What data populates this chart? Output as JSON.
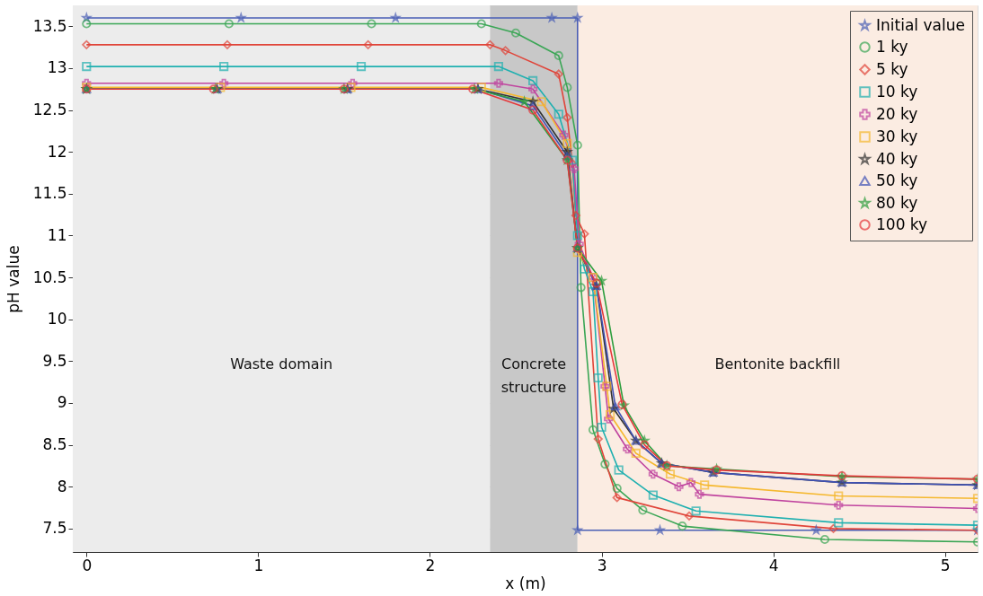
{
  "chart_data": {
    "type": "line",
    "xlabel": "x (m)",
    "ylabel": "pH value",
    "xlim": [
      -0.08,
      5.19
    ],
    "ylim": [
      7.22,
      13.75
    ],
    "xticks": [
      0,
      1,
      2,
      3,
      4,
      5
    ],
    "yticks": [
      7.5,
      8,
      8.5,
      9,
      9.5,
      10,
      10.5,
      11,
      11.5,
      12,
      12.5,
      13,
      13.5
    ],
    "grid": true,
    "legend": "top right",
    "bands": [
      {
        "axis": "x",
        "from": -0.08,
        "to": 2.35,
        "label": "Waste domain",
        "color": "#ececec"
      },
      {
        "axis": "x",
        "from": 2.35,
        "to": 2.86,
        "label": "Concrete\nstructure",
        "color": "#c8c8c8"
      },
      {
        "axis": "x",
        "from": 2.86,
        "to": 5.19,
        "label": "Bentonite backfill",
        "color": "#fbece2"
      }
    ],
    "series": [
      {
        "name": "Initial value",
        "color": "#4a5fb5",
        "marker": "star",
        "x": [
          0,
          0.9,
          1.8,
          2.71,
          2.86,
          2.86,
          3.34,
          4.25,
          5.19
        ],
        "values": [
          13.6,
          13.6,
          13.6,
          13.6,
          13.6,
          7.48,
          7.48,
          7.48,
          7.48
        ]
      },
      {
        "name": "1 ky",
        "color": "#3aa655",
        "marker": "circle",
        "x": [
          0,
          0.83,
          1.66,
          2.3,
          2.5,
          2.75,
          2.8,
          2.86,
          2.88,
          2.95,
          3.02,
          3.09,
          3.24,
          3.47,
          4.3,
          5.19
        ],
        "values": [
          13.53,
          13.53,
          13.53,
          13.53,
          13.42,
          13.15,
          12.77,
          12.08,
          10.38,
          8.68,
          8.27,
          7.98,
          7.72,
          7.53,
          7.37,
          7.34
        ]
      },
      {
        "name": "5 ky",
        "color": "#e0453a",
        "marker": "diamond",
        "x": [
          0,
          0.82,
          1.64,
          2.35,
          2.44,
          2.75,
          2.8,
          2.83,
          2.85,
          2.9,
          2.98,
          3.09,
          3.51,
          4.35,
          5.19
        ],
        "values": [
          13.28,
          13.28,
          13.28,
          13.28,
          13.21,
          12.93,
          12.41,
          11.86,
          11.24,
          11.02,
          8.57,
          7.87,
          7.65,
          7.5,
          7.48
        ]
      },
      {
        "name": "10 ky",
        "color": "#1fb0b0",
        "marker": "square",
        "x": [
          0,
          0.8,
          1.6,
          2.4,
          2.6,
          2.75,
          2.83,
          2.86,
          2.9,
          2.95,
          2.98,
          3.0,
          3.1,
          3.3,
          3.55,
          4.38,
          5.19
        ],
        "values": [
          13.02,
          13.02,
          13.02,
          13.02,
          12.85,
          12.45,
          11.9,
          11.0,
          10.6,
          10.33,
          9.3,
          8.71,
          8.2,
          7.9,
          7.71,
          7.57,
          7.54
        ]
      },
      {
        "name": "20 ky",
        "color": "#c0449f",
        "marker": "cross",
        "x": [
          0,
          0.8,
          1.55,
          2.4,
          2.6,
          2.78,
          2.84,
          2.87,
          2.95,
          3.02,
          3.04,
          3.15,
          3.3,
          3.45,
          3.52,
          3.57,
          4.38,
          5.19
        ],
        "values": [
          12.82,
          12.82,
          12.82,
          12.82,
          12.75,
          12.2,
          11.8,
          10.9,
          10.5,
          9.2,
          8.81,
          8.45,
          8.15,
          8.0,
          8.05,
          7.91,
          7.78,
          7.74
        ]
      },
      {
        "name": "30 ky",
        "color": "#f5b82e",
        "marker": "square",
        "x": [
          0,
          0.78,
          1.54,
          2.3,
          2.65,
          2.8,
          2.86,
          2.95,
          3.03,
          3.05,
          3.2,
          3.4,
          3.6,
          4.38,
          5.19
        ],
        "values": [
          12.77,
          12.77,
          12.77,
          12.77,
          12.6,
          12.1,
          10.8,
          10.5,
          9.2,
          8.86,
          8.4,
          8.15,
          8.02,
          7.89,
          7.86
        ]
      },
      {
        "name": "40 ky",
        "color": "#333333",
        "marker": "star",
        "x": [
          0,
          0.76,
          1.52,
          2.28,
          2.6,
          2.8,
          2.86,
          2.97,
          3.07,
          3.2,
          3.35,
          3.65,
          4.4,
          5.19
        ],
        "values": [
          12.75,
          12.75,
          12.75,
          12.75,
          12.6,
          12.0,
          10.85,
          10.4,
          8.93,
          8.55,
          8.28,
          8.17,
          8.05,
          8.02
        ]
      },
      {
        "name": "50 ky",
        "color": "#3f51b5",
        "marker": "triangle",
        "x": [
          0,
          0.76,
          1.52,
          2.28,
          2.6,
          2.8,
          2.86,
          2.97,
          3.08,
          3.2,
          3.35,
          3.65,
          4.4,
          5.19
        ],
        "values": [
          12.75,
          12.75,
          12.75,
          12.75,
          12.55,
          11.95,
          10.85,
          10.4,
          8.96,
          8.55,
          8.28,
          8.17,
          8.05,
          8.02
        ]
      },
      {
        "name": "80 ky",
        "color": "#2e9e3e",
        "marker": "star",
        "x": [
          0,
          0.75,
          1.5,
          2.26,
          2.55,
          2.8,
          2.86,
          3.0,
          3.13,
          3.25,
          3.38,
          3.67,
          4.4,
          5.19
        ],
        "values": [
          12.75,
          12.75,
          12.75,
          12.75,
          12.6,
          11.9,
          10.85,
          10.46,
          8.97,
          8.55,
          8.25,
          8.21,
          8.12,
          8.09
        ]
      },
      {
        "name": "100 ky",
        "color": "#e5383b",
        "marker": "circle",
        "x": [
          0,
          0.74,
          1.5,
          2.25,
          2.6,
          2.8,
          2.86,
          2.97,
          3.12,
          3.25,
          3.38,
          3.67,
          4.4,
          5.19
        ],
        "values": [
          12.75,
          12.75,
          12.75,
          12.75,
          12.5,
          11.9,
          10.85,
          10.43,
          8.98,
          8.5,
          8.25,
          8.2,
          8.13,
          8.09
        ]
      }
    ]
  }
}
